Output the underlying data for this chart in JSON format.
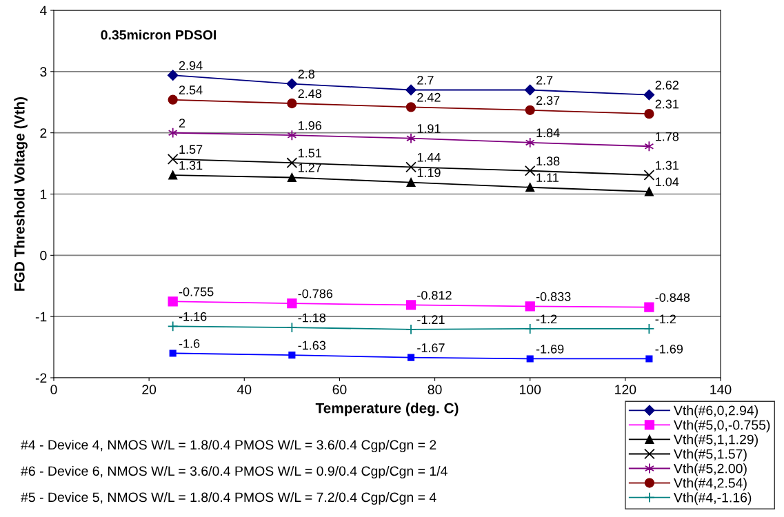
{
  "chart_data": {
    "type": "line",
    "title": "0.35micron PDSOI",
    "xlabel": "Temperature (deg. C)",
    "ylabel": "FGD Threshold Voltage (Vth)",
    "x": [
      25,
      50,
      75,
      100,
      125
    ],
    "xlim": [
      0,
      140
    ],
    "xticks": [
      0,
      20,
      40,
      60,
      80,
      100,
      120,
      140
    ],
    "ylim": [
      -2,
      4
    ],
    "yticks": [
      -2,
      -1,
      0,
      1,
      2,
      3,
      4
    ],
    "grid": "y",
    "legend": "bottom right",
    "data_labels": true,
    "series": [
      {
        "name": "Vth(#6,0,2.94)",
        "color": "#000080",
        "marker": "diamond",
        "values": [
          2.94,
          2.8,
          2.7,
          2.7,
          2.62
        ]
      },
      {
        "name": "Vth(#5,0,-0.755)",
        "color": "#ff00ff",
        "marker": "square",
        "values": [
          -0.755,
          -0.786,
          -0.812,
          -0.833,
          -0.848
        ]
      },
      {
        "name": "Vth(#5,1,1.29)",
        "color": "#000000",
        "marker": "triangle",
        "values": [
          1.31,
          1.27,
          1.19,
          1.11,
          1.04
        ]
      },
      {
        "name": "Vth(#5,1.57)",
        "color": "#000000",
        "marker": "cross",
        "values": [
          1.57,
          1.51,
          1.44,
          1.38,
          1.31
        ]
      },
      {
        "name": "Vth(#5,2.00)",
        "color": "#800080",
        "marker": "cross",
        "values": [
          2,
          1.96,
          1.91,
          1.84,
          1.78
        ]
      },
      {
        "name": "Vth(#4,2.54)",
        "color": "#800000",
        "marker": "circle",
        "values": [
          2.54,
          2.48,
          2.42,
          2.37,
          2.31
        ]
      },
      {
        "name": "Vth(#4,-1.16)",
        "color": "#008080",
        "marker": "cross",
        "values": [
          -1.16,
          -1.18,
          -1.21,
          -1.2,
          -1.2
        ]
      },
      {
        "color": "#0000ff",
        "marker": "square",
        "values": [
          -1.6,
          -1.63,
          -1.67,
          -1.69,
          -1.69
        ]
      }
    ],
    "annotations": [
      "#4 - Device 4, NMOS W/L = 1.8/0.4 PMOS W/L = 3.6/0.4 Cgp/Cgn = 2",
      "#6 - Device 6, NMOS W/L = 3.6/0.4 PMOS W/L = 0.9/0.4 Cgp/Cgn = 1/4",
      "#5 - Device 5, NMOS W/L = 1.8/0.4 PMOS W/L = 7.2/0.4 Cgp/Cgn = 4"
    ]
  }
}
